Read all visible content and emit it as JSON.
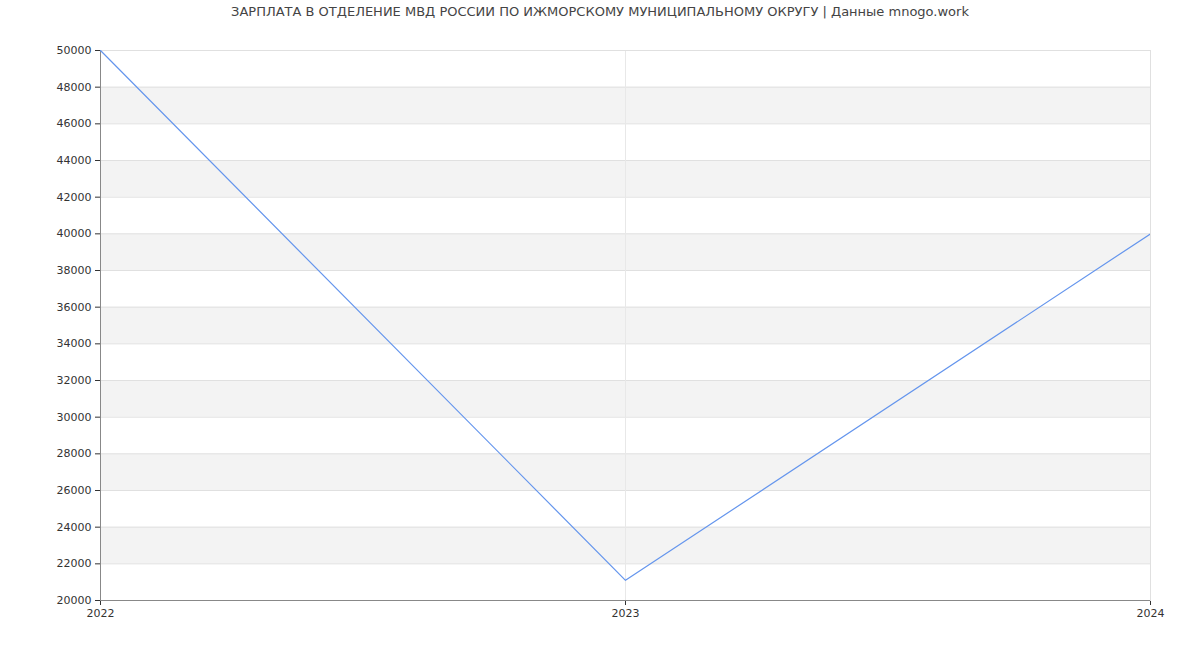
{
  "chart_data": {
    "type": "line",
    "title": "ЗАРПЛАТА В ОТДЕЛЕНИЕ МВД РОССИИ ПО ИЖМОРСКОМУ МУНИЦИПАЛЬНОМУ ОКРУГУ | Данные mnogo.work",
    "x": [
      2022,
      2023,
      2024
    ],
    "values": [
      50000,
      21100,
      40000
    ],
    "color": "#6495ed",
    "xlim": [
      2022,
      2024
    ],
    "xticks": [
      2022,
      2023,
      2024
    ],
    "ylim": [
      20000,
      50000
    ],
    "yticks": [
      20000,
      22000,
      24000,
      26000,
      28000,
      30000,
      32000,
      34000,
      36000,
      38000,
      40000,
      42000,
      44000,
      46000,
      48000,
      50000
    ],
    "grid": true
  }
}
